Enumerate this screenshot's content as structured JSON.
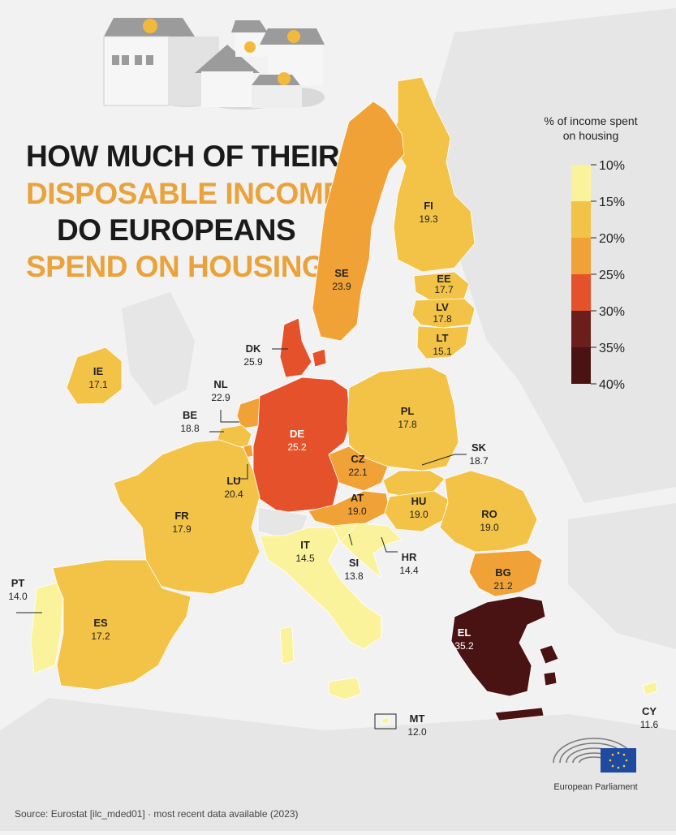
{
  "title": {
    "line1": "HOW MUCH OF THEIR",
    "line2": "DISPOSABLE INCOME",
    "line3": "DO EUROPEANS",
    "line4": "SPEND ON HOUSING",
    "qmark": "?"
  },
  "legend": {
    "title_line1": "% of income spent",
    "title_line2": "on housing",
    "ticks": [
      "10%",
      "15%",
      "20%",
      "25%",
      "30%",
      "35%",
      "40%"
    ],
    "colors": [
      "#fbf39c",
      "#f3c347",
      "#f0a236",
      "#e5512a",
      "#6b1f1c",
      "#4a1313"
    ]
  },
  "countries": [
    {
      "code": "FI",
      "value": "19.3"
    },
    {
      "code": "SE",
      "value": "23.9"
    },
    {
      "code": "EE",
      "value": "17.7"
    },
    {
      "code": "LV",
      "value": "17.8"
    },
    {
      "code": "LT",
      "value": "15.1"
    },
    {
      "code": "DK",
      "value": "25.9"
    },
    {
      "code": "IE",
      "value": "17.1"
    },
    {
      "code": "NL",
      "value": "22.9"
    },
    {
      "code": "BE",
      "value": "18.8"
    },
    {
      "code": "DE",
      "value": "25.2"
    },
    {
      "code": "PL",
      "value": "17.8"
    },
    {
      "code": "SK",
      "value": "18.7"
    },
    {
      "code": "CZ",
      "value": "22.1"
    },
    {
      "code": "LU",
      "value": "20.4"
    },
    {
      "code": "AT",
      "value": "19.0"
    },
    {
      "code": "HU",
      "value": "19.0"
    },
    {
      "code": "RO",
      "value": "19.0"
    },
    {
      "code": "FR",
      "value": "17.9"
    },
    {
      "code": "IT",
      "value": "14.5"
    },
    {
      "code": "SI",
      "value": "13.8"
    },
    {
      "code": "HR",
      "value": "14.4"
    },
    {
      "code": "BG",
      "value": "21.2"
    },
    {
      "code": "PT",
      "value": "14.0"
    },
    {
      "code": "ES",
      "value": "17.2"
    },
    {
      "code": "EL",
      "value": "35.2"
    },
    {
      "code": "MT",
      "value": "12.0"
    },
    {
      "code": "CY",
      "value": "11.6"
    }
  ],
  "logo_text": "European Parliament",
  "source": "Source: Eurostat [ilc_mded01]  ·  most recent data available (2023)",
  "colors": {
    "title_dark": "#1a1a1a",
    "title_orange": "#eaa23a",
    "background": "#f2f2f2",
    "land": "#e6e6e6"
  }
}
